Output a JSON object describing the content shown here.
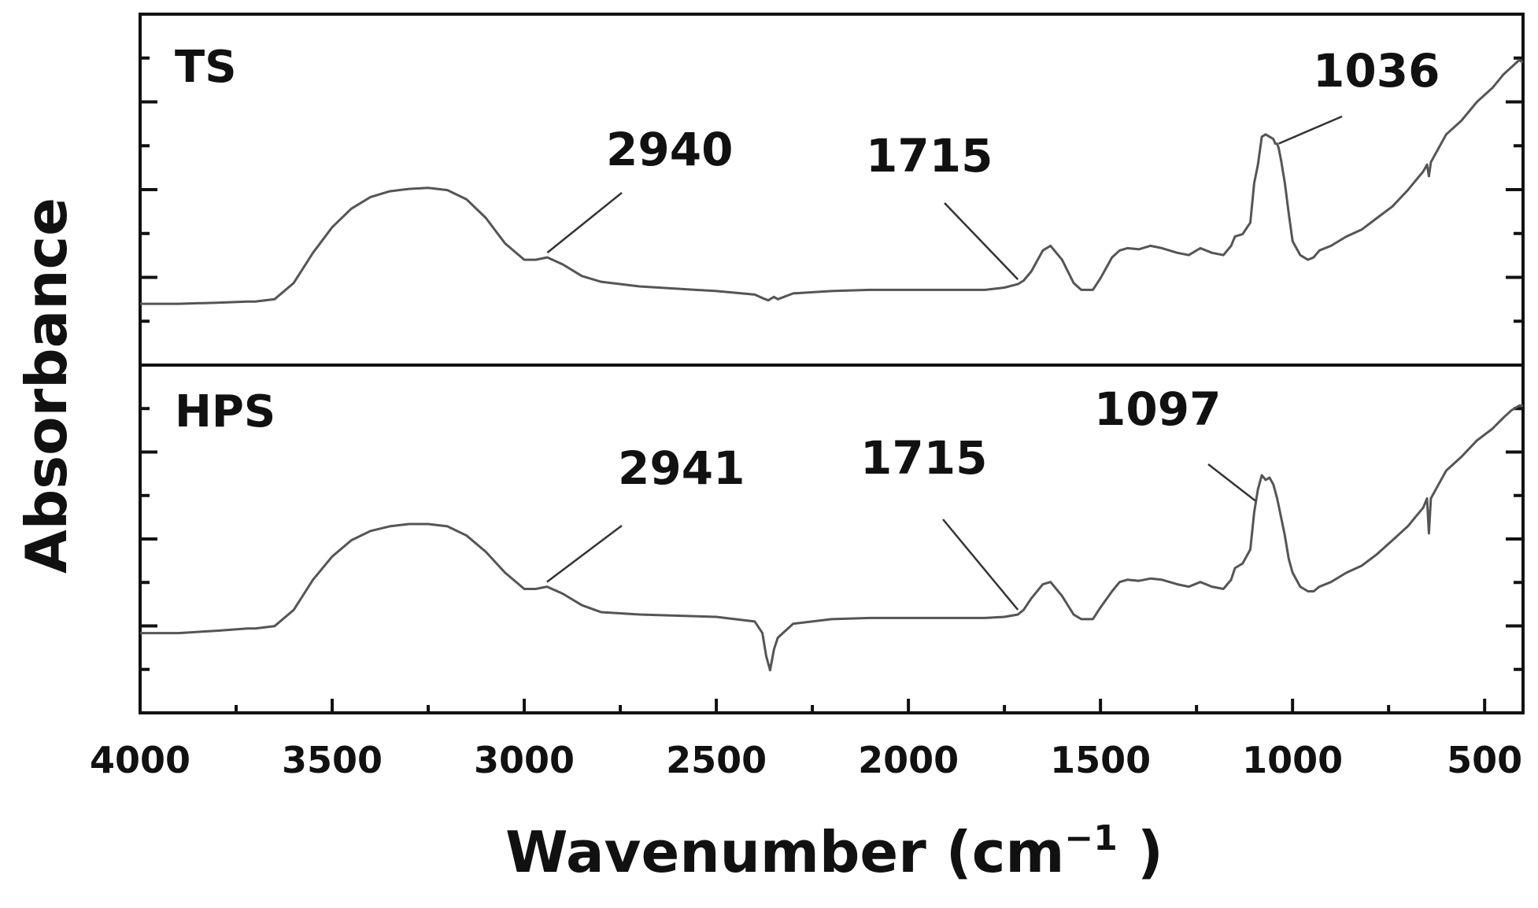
{
  "chart_data": {
    "type": "line",
    "xlabel": "Wavenumber (cm",
    "xlabel_sup": "−1",
    "xlabel_end": " )",
    "ylabel": "Absorbance",
    "xlim": [
      4000,
      400
    ],
    "x_reversed": true,
    "x_ticks": [
      "4000",
      "3500",
      "3000",
      "2500",
      "2000",
      "1500",
      "1000",
      "500"
    ],
    "y_tick_labels": "none",
    "grid": false,
    "legend": "none",
    "panels": [
      {
        "name": "TS",
        "series": [
          {
            "name": "TS",
            "x": [
              4000,
              3900,
              3800,
              3720,
              3700,
              3650,
              3600,
              3550,
              3500,
              3450,
              3400,
              3350,
              3300,
              3250,
              3200,
              3150,
              3100,
              3050,
              3000,
              2970,
              2940,
              2900,
              2850,
              2800,
              2700,
              2600,
              2500,
              2400,
              2380,
              2365,
              2350,
              2340,
              2300,
              2200,
              2100,
              2000,
              1900,
              1800,
              1750,
              1715,
              1700,
              1680,
              1650,
              1630,
              1600,
              1570,
              1550,
              1520,
              1500,
              1470,
              1450,
              1430,
              1400,
              1370,
              1340,
              1300,
              1270,
              1240,
              1210,
              1180,
              1160,
              1150,
              1130,
              1110,
              1100,
              1090,
              1080,
              1070,
              1060,
              1050,
              1045,
              1040,
              1036,
              1030,
              1020,
              1010,
              1000,
              980,
              960,
              945,
              930,
              900,
              860,
              820,
              780,
              740,
              700,
              680,
              660,
              650,
              645,
              640,
              620,
              600,
              560,
              520,
              480,
              450,
              430,
              410,
              400
            ],
            "y": [
              0.03,
              0.03,
              0.035,
              0.04,
              0.04,
              0.05,
              0.12,
              0.25,
              0.36,
              0.44,
              0.49,
              0.515,
              0.525,
              0.53,
              0.52,
              0.48,
              0.4,
              0.29,
              0.22,
              0.22,
              0.23,
              0.2,
              0.15,
              0.125,
              0.105,
              0.095,
              0.085,
              0.07,
              0.055,
              0.045,
              0.06,
              0.05,
              0.075,
              0.085,
              0.09,
              0.09,
              0.09,
              0.09,
              0.1,
              0.115,
              0.13,
              0.17,
              0.26,
              0.28,
              0.22,
              0.12,
              0.09,
              0.09,
              0.14,
              0.23,
              0.26,
              0.27,
              0.265,
              0.28,
              0.27,
              0.25,
              0.24,
              0.27,
              0.25,
              0.24,
              0.28,
              0.32,
              0.33,
              0.38,
              0.55,
              0.63,
              0.75,
              0.76,
              0.75,
              0.74,
              0.72,
              0.72,
              0.7,
              0.65,
              0.55,
              0.42,
              0.3,
              0.24,
              0.22,
              0.23,
              0.26,
              0.28,
              0.32,
              0.35,
              0.4,
              0.45,
              0.52,
              0.56,
              0.6,
              0.63,
              0.58,
              0.64,
              0.7,
              0.76,
              0.82,
              0.9,
              0.96,
              1.02,
              1.05,
              1.08,
              1.07
            ]
          }
        ],
        "annotations": [
          {
            "text": "2940",
            "x": 2940
          },
          {
            "text": "1715",
            "x": 1715
          },
          {
            "text": "1036",
            "x": 1036
          }
        ]
      },
      {
        "name": "HPS",
        "series": [
          {
            "name": "HPS",
            "x": [
              4000,
              3900,
              3800,
              3720,
              3700,
              3650,
              3600,
              3550,
              3500,
              3450,
              3400,
              3350,
              3300,
              3250,
              3200,
              3150,
              3100,
              3050,
              3000,
              2970,
              2941,
              2900,
              2850,
              2800,
              2700,
              2600,
              2500,
              2400,
              2380,
              2370,
              2360,
              2350,
              2340,
              2320,
              2300,
              2200,
              2100,
              2000,
              1900,
              1800,
              1750,
              1715,
              1700,
              1680,
              1650,
              1630,
              1600,
              1570,
              1550,
              1520,
              1500,
              1470,
              1450,
              1430,
              1400,
              1370,
              1340,
              1300,
              1270,
              1240,
              1210,
              1180,
              1160,
              1150,
              1130,
              1110,
              1100,
              1090,
              1080,
              1070,
              1060,
              1050,
              1040,
              1030,
              1020,
              1010,
              1000,
              980,
              960,
              945,
              930,
              900,
              860,
              820,
              780,
              740,
              700,
              680,
              660,
              650,
              645,
              640,
              620,
              600,
              560,
              520,
              480,
              450,
              430,
              410,
              400
            ],
            "y": [
              0.12,
              0.12,
              0.13,
              0.14,
              0.14,
              0.15,
              0.22,
              0.35,
              0.45,
              0.52,
              0.56,
              0.58,
              0.59,
              0.59,
              0.58,
              0.54,
              0.47,
              0.38,
              0.31,
              0.31,
              0.32,
              0.29,
              0.24,
              0.21,
              0.2,
              0.195,
              0.19,
              0.17,
              0.12,
              0.02,
              -0.04,
              0.05,
              0.1,
              0.13,
              0.16,
              0.18,
              0.185,
              0.185,
              0.185,
              0.185,
              0.19,
              0.2,
              0.22,
              0.27,
              0.33,
              0.34,
              0.28,
              0.2,
              0.18,
              0.18,
              0.23,
              0.3,
              0.34,
              0.35,
              0.345,
              0.355,
              0.35,
              0.33,
              0.32,
              0.34,
              0.32,
              0.31,
              0.35,
              0.4,
              0.42,
              0.48,
              0.64,
              0.74,
              0.8,
              0.78,
              0.79,
              0.76,
              0.7,
              0.62,
              0.54,
              0.44,
              0.38,
              0.32,
              0.3,
              0.3,
              0.32,
              0.34,
              0.38,
              0.41,
              0.46,
              0.52,
              0.58,
              0.62,
              0.66,
              0.7,
              0.55,
              0.7,
              0.76,
              0.82,
              0.88,
              0.95,
              1.0,
              1.05,
              1.08,
              1.1,
              1.1
            ]
          }
        ],
        "annotations": [
          {
            "text": "2941",
            "x": 2941
          },
          {
            "text": "1715",
            "x": 1715
          },
          {
            "text": "1097",
            "x": 1097
          }
        ]
      }
    ]
  }
}
